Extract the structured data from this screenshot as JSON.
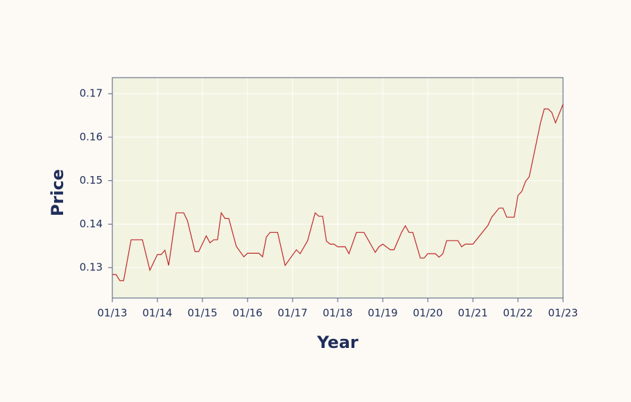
{
  "chart_data": {
    "type": "line",
    "xlabel": "Year",
    "ylabel": "Price",
    "x": [
      "2013-01",
      "2013-02",
      "2013-03",
      "2013-04",
      "2013-06",
      "2013-09",
      "2013-11",
      "2014-01",
      "2014-02",
      "2014-03",
      "2014-04",
      "2014-06",
      "2014-08",
      "2014-09",
      "2014-11",
      "2014-12",
      "2015-02",
      "2015-03",
      "2015-04",
      "2015-05",
      "2015-06",
      "2015-07",
      "2015-08",
      "2015-10",
      "2015-12",
      "2016-01",
      "2016-04",
      "2016-05",
      "2016-06",
      "2016-07",
      "2016-09",
      "2016-11",
      "2017-02",
      "2017-03",
      "2017-05",
      "2017-07",
      "2017-08",
      "2017-09",
      "2017-10",
      "2017-11",
      "2017-12",
      "2018-01",
      "2018-03",
      "2018-04",
      "2018-06",
      "2018-08",
      "2018-11",
      "2018-12",
      "2019-01",
      "2019-03",
      "2019-04",
      "2019-06",
      "2019-07",
      "2019-08",
      "2019-09",
      "2019-11",
      "2019-12",
      "2020-01",
      "2020-03",
      "2020-04",
      "2020-05",
      "2020-06",
      "2020-09",
      "2020-10",
      "2020-11",
      "2021-01",
      "2021-05",
      "2021-06",
      "2021-08",
      "2021-09",
      "2021-10",
      "2021-12",
      "2022-01",
      "2022-02",
      "2022-03",
      "2022-04",
      "2022-07",
      "2022-08",
      "2022-09",
      "2022-10",
      "2022-11",
      "2023-01"
    ],
    "series": [
      {
        "name": "Price",
        "color": "#c0262a",
        "values": [
          0.1284,
          0.1284,
          0.127,
          0.127,
          0.1364,
          0.1364,
          0.1294,
          0.133,
          0.133,
          0.134,
          0.1305,
          0.1426,
          0.1426,
          0.1408,
          0.1337,
          0.1337,
          0.1373,
          0.1357,
          0.1364,
          0.1364,
          0.1426,
          0.1413,
          0.1413,
          0.1349,
          0.1325,
          0.1333,
          0.1333,
          0.1325,
          0.137,
          0.1381,
          0.1381,
          0.1305,
          0.1341,
          0.1332,
          0.1362,
          0.1426,
          0.1418,
          0.1418,
          0.1361,
          0.1354,
          0.1354,
          0.1348,
          0.1348,
          0.1332,
          0.1381,
          0.1381,
          0.1335,
          0.1348,
          0.1354,
          0.1341,
          0.1341,
          0.1381,
          0.1396,
          0.1381,
          0.1381,
          0.1322,
          0.1322,
          0.1332,
          0.1332,
          0.1324,
          0.1332,
          0.1362,
          0.1362,
          0.1348,
          0.1354,
          0.1354,
          0.1397,
          0.1416,
          0.1437,
          0.1437,
          0.1416,
          0.1416,
          0.1466,
          0.1475,
          0.1498,
          0.1509,
          0.1633,
          0.1665,
          0.1665,
          0.1657,
          0.1633,
          0.1676
        ]
      }
    ],
    "xlim": [
      "2013-01",
      "2023-01"
    ],
    "xticks": [
      {
        "value": "2013-01",
        "label": "01/13"
      },
      {
        "value": "2014-01",
        "label": "01/14"
      },
      {
        "value": "2015-01",
        "label": "01/15"
      },
      {
        "value": "2016-01",
        "label": "01/16"
      },
      {
        "value": "2017-01",
        "label": "01/17"
      },
      {
        "value": "2018-01",
        "label": "01/18"
      },
      {
        "value": "2019-01",
        "label": "01/19"
      },
      {
        "value": "2020-01",
        "label": "01/20"
      },
      {
        "value": "2021-01",
        "label": "01/21"
      },
      {
        "value": "2022-01",
        "label": "01/22"
      },
      {
        "value": "2023-01",
        "label": "01/23"
      }
    ],
    "ylim": [
      0.123,
      0.1737
    ],
    "yticks": [
      0.13,
      0.14,
      0.15,
      0.16,
      0.17
    ],
    "grid": true
  }
}
